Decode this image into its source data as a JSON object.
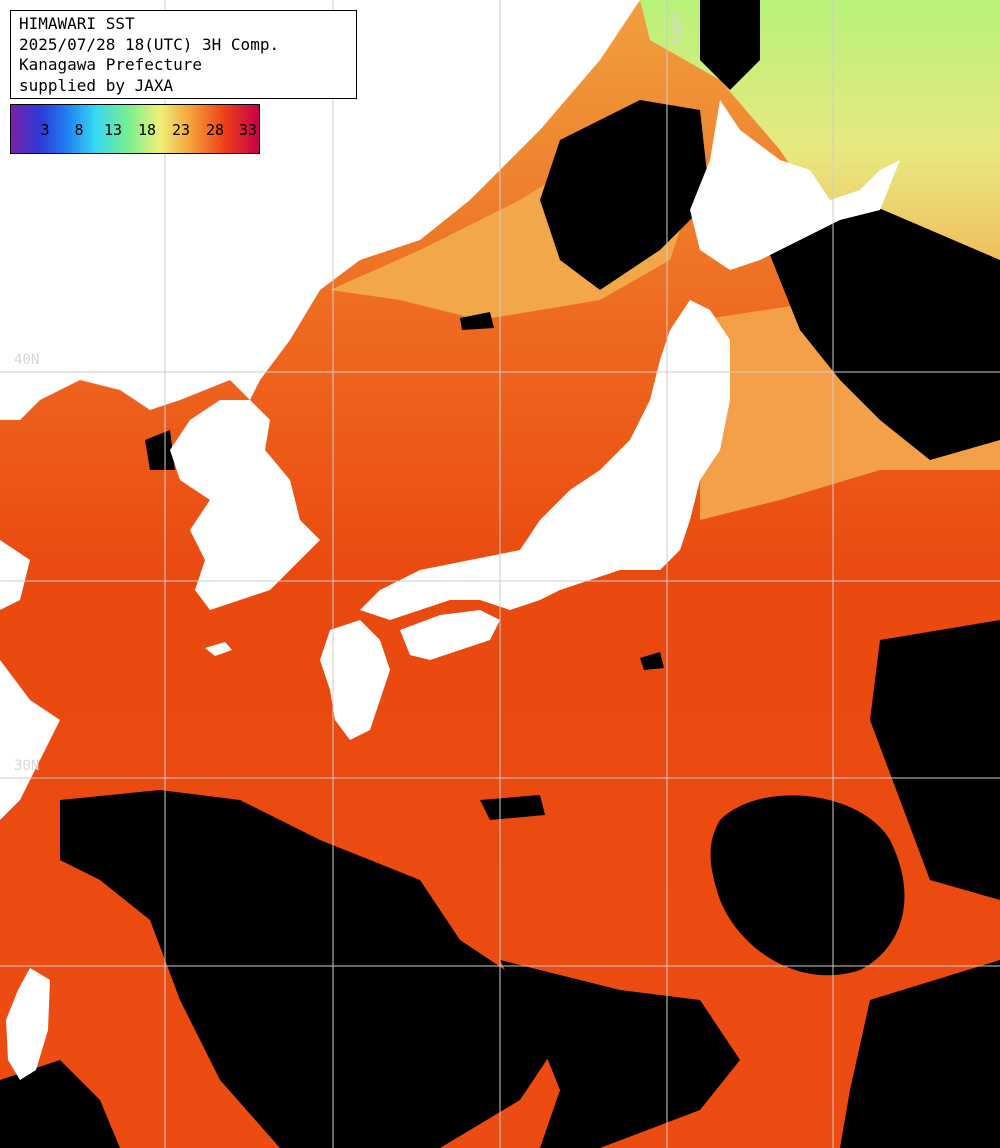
{
  "info": {
    "title": "HIMAWARI SST",
    "datetime": "2025/07/28 18(UTC) 3H Comp.",
    "region": "Kanagawa Prefecture",
    "credit": "supplied by JAXA"
  },
  "colorbar": {
    "labels": [
      "3",
      "8",
      "13",
      "18",
      "23",
      "28",
      "33"
    ]
  },
  "grid_labels": {
    "lat_40": "40N",
    "lat_30": "30N",
    "lon_140": "140E"
  },
  "colors": {
    "land": "#ffffff",
    "cloud": "#000000",
    "warm_sea": "#ee4a12",
    "cool_sea": "#9ff07a",
    "grid": "#cccccc"
  }
}
